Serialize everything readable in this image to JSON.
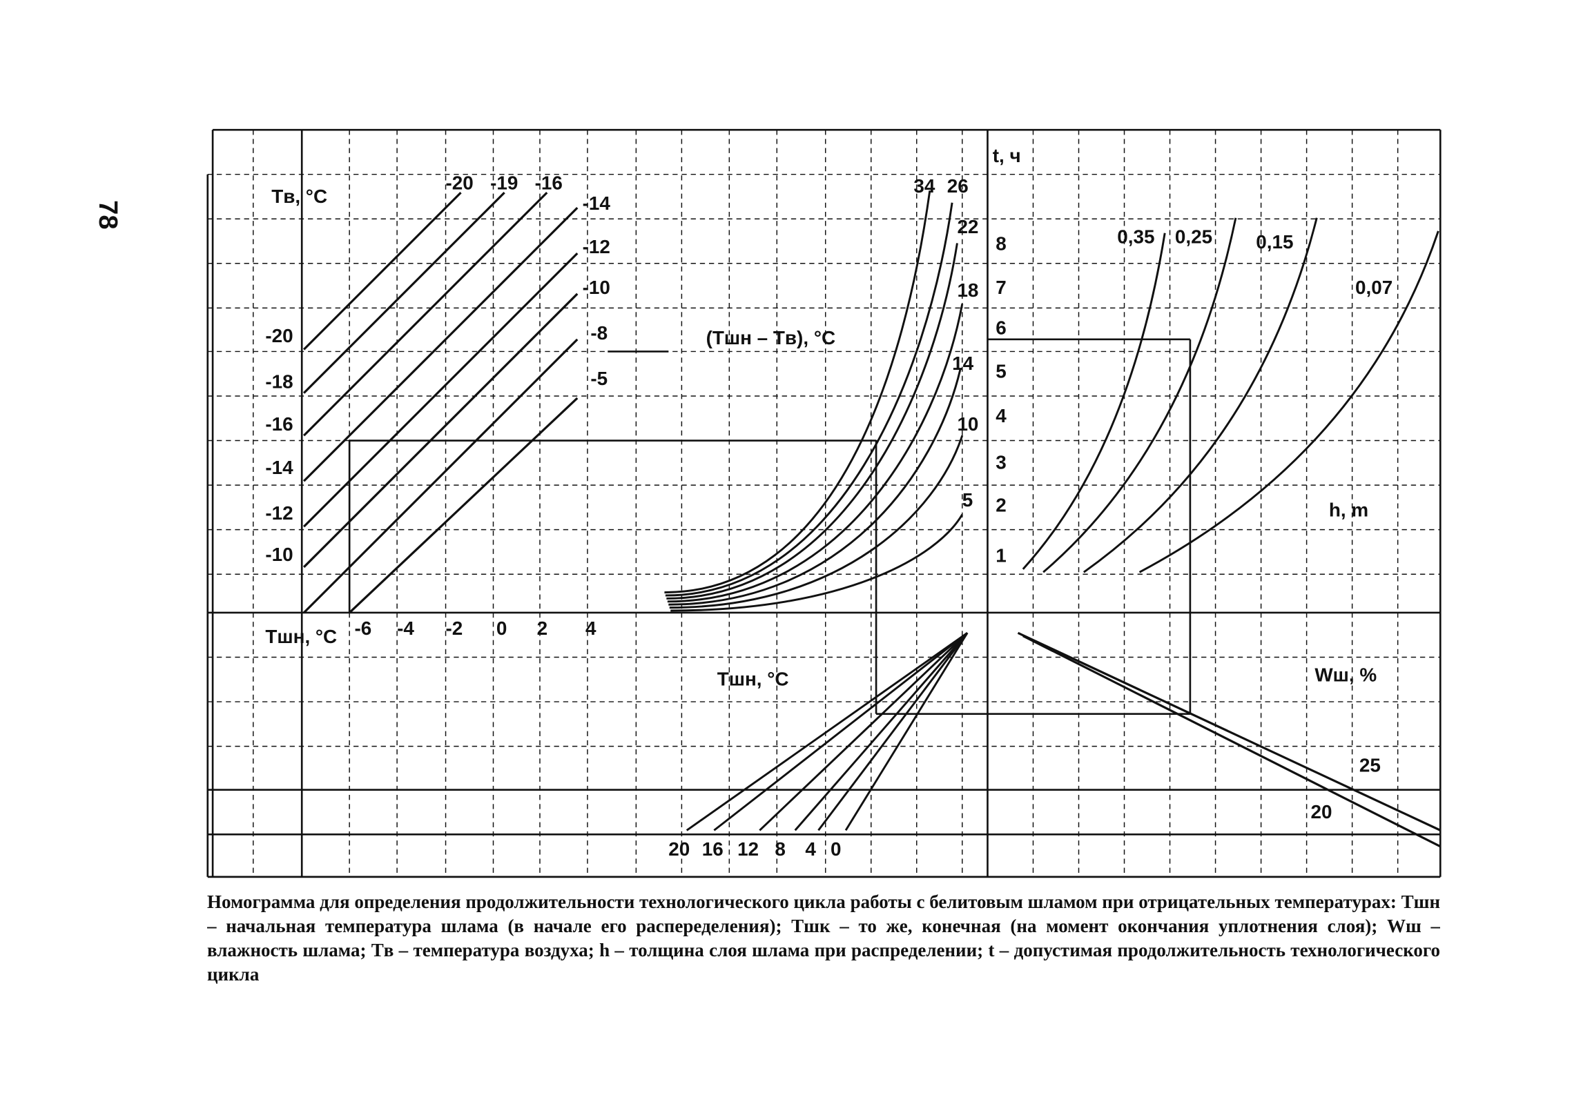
{
  "page_number": "78",
  "labels": {
    "air_temp": "Tв, °C",
    "initial_temp": "Tшн, °C",
    "difference": "(Tшн – Tв), °C",
    "middle_temp": "Tшн, °C",
    "time": "t, ч",
    "thickness": "h, m",
    "moisture": "Wш, %"
  },
  "air_temp_lines": [
    "-20",
    "-19",
    "-16",
    "-14",
    "-12",
    "-10",
    "-8",
    "-5"
  ],
  "left_scale": [
    "-20",
    "-18",
    "-16",
    "-14",
    "-12",
    "-10"
  ],
  "bottom_scale": [
    "-6",
    "-4",
    "-2",
    "0",
    "2",
    "4"
  ],
  "difference_curves": [
    "34",
    "26",
    "22",
    "18",
    "14",
    "10",
    "5"
  ],
  "time_scale": [
    "8",
    "7",
    "6",
    "5",
    "4",
    "3",
    "2",
    "1"
  ],
  "thickness_curves": [
    "0,35",
    "0,25",
    "0,15",
    "0,07"
  ],
  "fan_lines": [
    "20",
    "16",
    "12",
    "8",
    "4",
    "0"
  ],
  "moisture_lines": [
    "25",
    "20"
  ],
  "caption": "Номограмма для определения продолжительности технологического цикла работы с белитовым шламом при отрицательных температурах: Tшн – начальная температура шлама (в начале его распеределения); Tшк – то же, конечная (на момент окончания уплотнения слоя); Wш – влажность шлама; Tв – температура воздуха; h – толщина слоя шлама при распределении; t – допустимая продолжительность технологического цикла"
}
